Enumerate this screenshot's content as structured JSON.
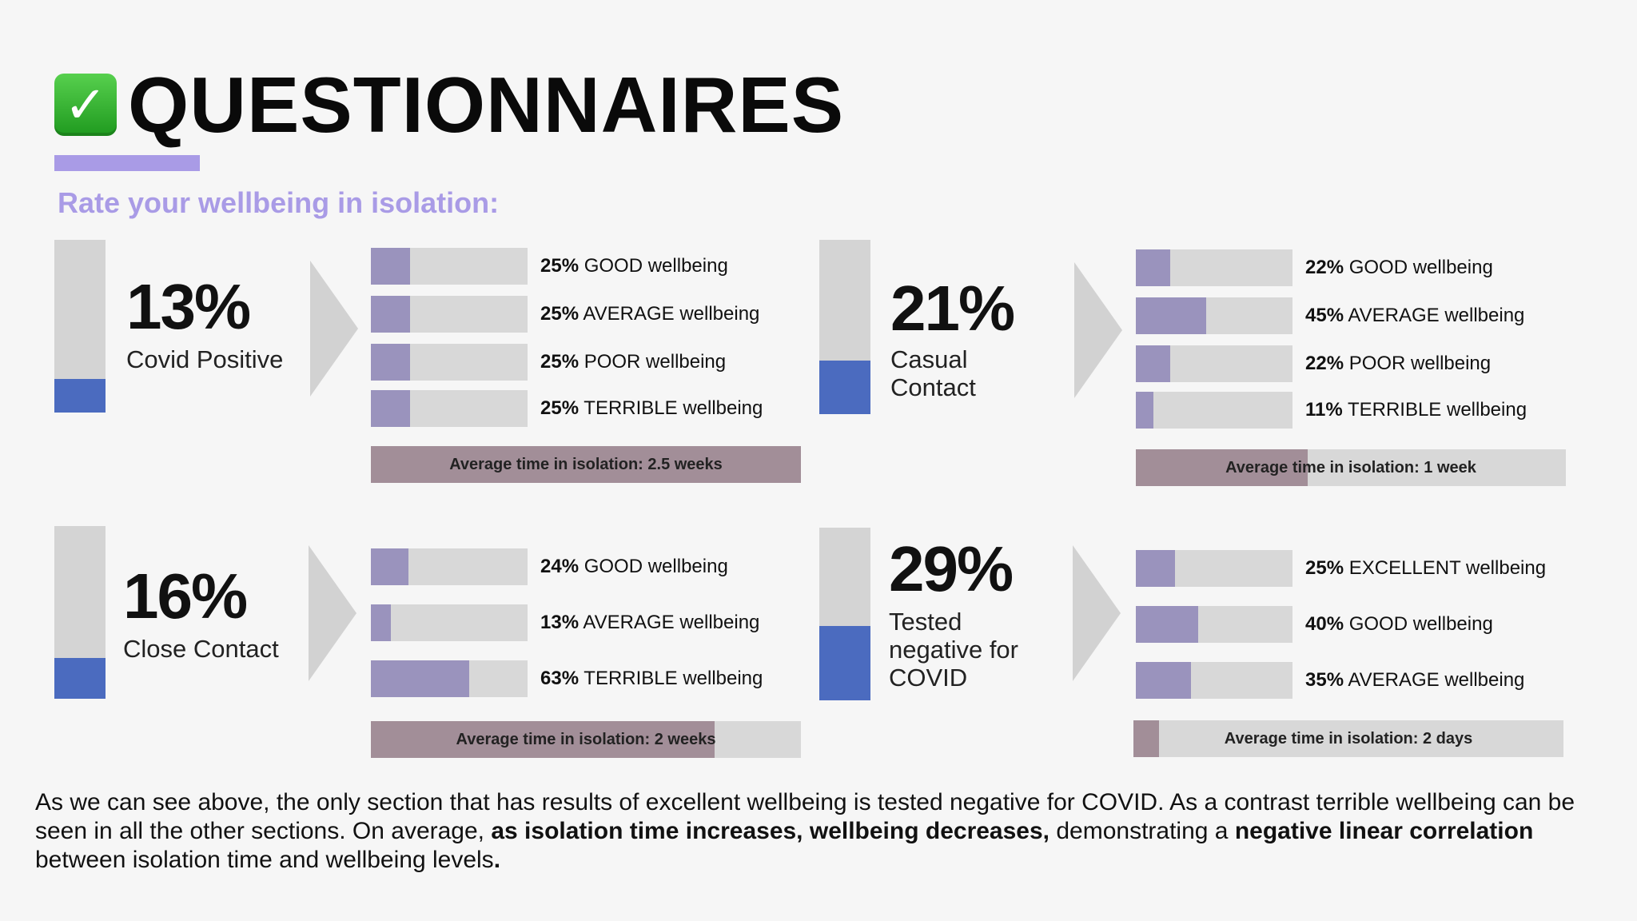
{
  "header": {
    "title": "QUESTIONNAIRES",
    "subtitle": "Rate your wellbeing in isolation:",
    "check_icon": "check-mark-button-icon"
  },
  "colors": {
    "accent": "#a99be6",
    "group_fill": "#4b6bbf",
    "response_fill": "#9a93bd",
    "avg_fill": "#a28e98",
    "track": "#d8d8d8",
    "chevron": "#d2d2d2"
  },
  "chart_data": [
    {
      "type": "bar",
      "group": {
        "percent": "13%",
        "label": "Covid Positive",
        "value": 13
      },
      "responses": [
        {
          "value": 25,
          "pct": "25%",
          "label": "GOOD wellbeing"
        },
        {
          "value": 25,
          "pct": "25%",
          "label": "AVERAGE wellbeing"
        },
        {
          "value": 25,
          "pct": "25%",
          "label": "POOR wellbeing"
        },
        {
          "value": 25,
          "pct": "25%",
          "label": "TERRIBLE wellbeing"
        }
      ],
      "avg_time": {
        "text": "Average time in isolation: 2.5 weeks",
        "fill_fraction": 1.0
      }
    },
    {
      "type": "bar",
      "group": {
        "percent": "21%",
        "label": "Casual Contact",
        "value": 21
      },
      "responses": [
        {
          "value": 22,
          "pct": "22%",
          "label": "GOOD wellbeing"
        },
        {
          "value": 45,
          "pct": "45%",
          "label": "AVERAGE wellbeing"
        },
        {
          "value": 22,
          "pct": "22%",
          "label": "POOR wellbeing"
        },
        {
          "value": 11,
          "pct": "11%",
          "label": "TERRIBLE wellbeing"
        }
      ],
      "avg_time": {
        "text": "Average time in isolation: 1 week",
        "fill_fraction": 0.4
      }
    },
    {
      "type": "bar",
      "group": {
        "percent": "16%",
        "label": "Close Contact",
        "value": 16
      },
      "responses": [
        {
          "value": 24,
          "pct": "24%",
          "label": "GOOD wellbeing"
        },
        {
          "value": 13,
          "pct": "13%",
          "label": "AVERAGE wellbeing"
        },
        {
          "value": 63,
          "pct": "63%",
          "label": "TERRIBLE wellbeing"
        }
      ],
      "avg_time": {
        "text": "Average time in isolation: 2 weeks",
        "fill_fraction": 0.8
      }
    },
    {
      "type": "bar",
      "group": {
        "percent": "29%",
        "label": "Tested negative for COVID",
        "value": 29
      },
      "responses": [
        {
          "value": 25,
          "pct": "25%",
          "label": "EXCELLENT wellbeing"
        },
        {
          "value": 40,
          "pct": "40%",
          "label": "GOOD wellbeing"
        },
        {
          "value": 35,
          "pct": "35%",
          "label": "AVERAGE wellbeing"
        }
      ],
      "avg_time": {
        "text": "Average time in isolation: 2 days",
        "fill_fraction": 0.06
      }
    }
  ],
  "summary": {
    "part1": "As we can see above, the only section that has results of excellent wellbeing is tested negative for COVID. As a contrast terrible wellbeing can be seen in all the other sections. On average, ",
    "bold1": "as isolation time increases, wellbeing decreases,",
    "part2": " demonstrating a ",
    "bold2": "negative linear correlation",
    "part3": " between isolation time and wellbeing levels",
    "bold3": "."
  }
}
